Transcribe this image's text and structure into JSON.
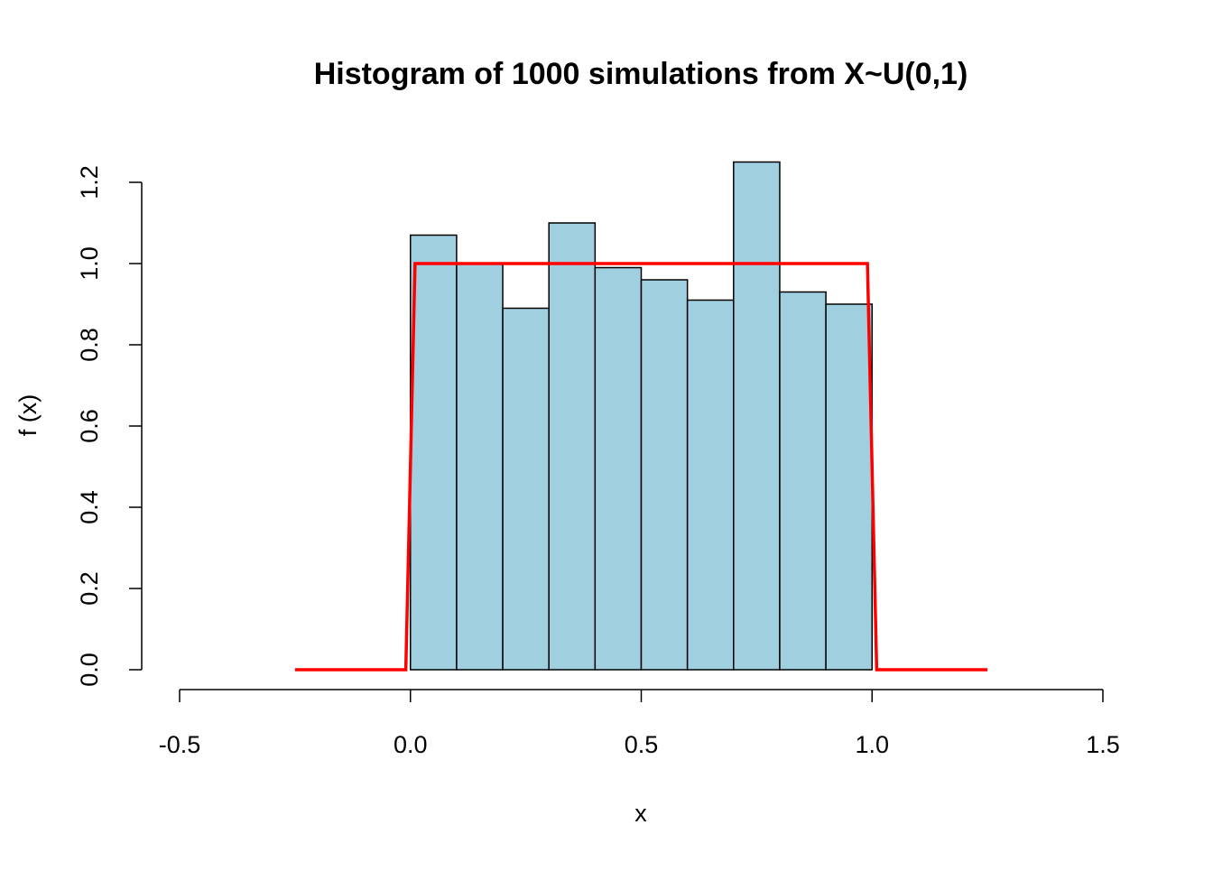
{
  "chart_data": {
    "type": "bar",
    "title": "Histogram of 1000 simulations from X~U(0,1)",
    "xlabel": "x",
    "ylabel": "f (x)",
    "xlim": [
      -0.5,
      1.5
    ],
    "ylim": [
      0,
      1.2
    ],
    "x_ticks": [
      "-0.5",
      "0.0",
      "0.5",
      "1.0",
      "1.5"
    ],
    "y_ticks": [
      "0.0",
      "0.2",
      "0.4",
      "0.6",
      "0.8",
      "1.0",
      "1.2"
    ],
    "bins": [
      {
        "start": 0.0,
        "end": 0.1,
        "density": 1.07
      },
      {
        "start": 0.1,
        "end": 0.2,
        "density": 1.0
      },
      {
        "start": 0.2,
        "end": 0.3,
        "density": 0.89
      },
      {
        "start": 0.3,
        "end": 0.4,
        "density": 1.1
      },
      {
        "start": 0.4,
        "end": 0.5,
        "density": 0.99
      },
      {
        "start": 0.5,
        "end": 0.6,
        "density": 0.96
      },
      {
        "start": 0.6,
        "end": 0.7,
        "density": 0.91
      },
      {
        "start": 0.7,
        "end": 0.8,
        "density": 1.25
      },
      {
        "start": 0.8,
        "end": 0.9,
        "density": 0.93
      },
      {
        "start": 0.9,
        "end": 1.0,
        "density": 0.9
      }
    ],
    "bar_color": "#a0d0e0",
    "bar_border_color": "#000000",
    "density_line": {
      "color": "#ff0000",
      "x": [
        -0.25,
        -0.01,
        0.01,
        0.99,
        1.01,
        1.25
      ],
      "y": [
        0,
        0,
        1,
        1,
        0,
        0
      ]
    },
    "grid": false,
    "legend": "none"
  }
}
